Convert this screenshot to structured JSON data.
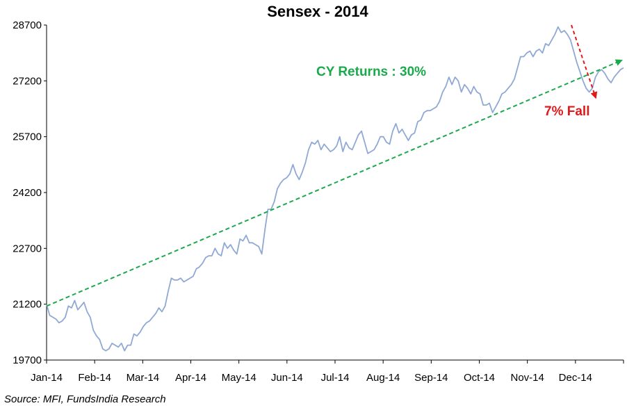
{
  "chart_data": {
    "type": "line",
    "title": "Sensex - 2014",
    "xlabel": "",
    "ylabel": "",
    "x_tick_labels": [
      "Jan-14",
      "Feb-14",
      "Mar-14",
      "Apr-14",
      "May-14",
      "Jun-14",
      "Jul-14",
      "Aug-14",
      "Sep-14",
      "Oct-14",
      "Nov-14",
      "Dec-14"
    ],
    "y_ticks": [
      19700,
      21200,
      22700,
      24200,
      25700,
      27200,
      28700
    ],
    "ylim": [
      19700,
      28700
    ],
    "series": [
      {
        "color": "#8FA9D4",
        "values": [
          21200,
          20900,
          20850,
          20800,
          20700,
          20750,
          20850,
          21150,
          21100,
          21300,
          21050,
          21150,
          21250,
          21000,
          20850,
          20500,
          20350,
          20250,
          20000,
          19950,
          20000,
          20150,
          20100,
          20050,
          20150,
          19950,
          20100,
          20100,
          20400,
          20350,
          20450,
          20600,
          20700,
          20750,
          20850,
          20950,
          21100,
          21000,
          21150,
          21550,
          21900,
          21850,
          21850,
          21900,
          21800,
          21850,
          21900,
          21950,
          22150,
          22200,
          22300,
          22450,
          22500,
          22500,
          22700,
          22550,
          22500,
          22850,
          22700,
          22800,
          22650,
          22550,
          22950,
          22900,
          23050,
          22850,
          22850,
          22800,
          22750,
          22550,
          23200,
          23750,
          23750,
          23950,
          24300,
          24450,
          24550,
          24600,
          24700,
          24950,
          24700,
          24550,
          24750,
          25000,
          25350,
          25550,
          25500,
          25600,
          25350,
          25500,
          25400,
          25300,
          25350,
          25450,
          25700,
          25300,
          25550,
          25400,
          25350,
          25550,
          25750,
          25850,
          25550,
          25250,
          25300,
          25350,
          25500,
          25700,
          25700,
          25550,
          25500,
          25850,
          26050,
          25800,
          25900,
          25750,
          25600,
          25750,
          25800,
          26100,
          26150,
          26350,
          26400,
          26400,
          26450,
          26500,
          26650,
          26900,
          27050,
          27300,
          27100,
          27300,
          27200,
          26900,
          27100,
          27000,
          26850,
          27050,
          26900,
          26850,
          26550,
          26550,
          26600,
          26350,
          26500,
          26650,
          26850,
          26900,
          27000,
          27100,
          27250,
          27550,
          27850,
          27850,
          27950,
          28000,
          27850,
          28000,
          28050,
          27950,
          28200,
          28150,
          28300,
          28450,
          28650,
          28500,
          28550,
          28450,
          28300,
          28000,
          27700,
          27450,
          27200,
          27000,
          26900,
          27000,
          27300,
          27450,
          27500,
          27400,
          27250,
          27150,
          27300,
          27400,
          27500,
          27550
        ]
      }
    ],
    "annotations": [
      {
        "text": "CY Returns : 30%",
        "color": "#1AAA4C"
      },
      {
        "text": "7% Fall",
        "color": "#E0191B"
      }
    ],
    "trend_line": {
      "from": 21150,
      "to": 27750,
      "color": "#1AAA4C",
      "style": "dashed"
    },
    "fall_arrow": {
      "from": 28700,
      "to": 26750,
      "color": "#E0191B",
      "style": "dashed"
    },
    "grid": false,
    "legend": "none"
  },
  "source": "Source: MFI, FundsIndia Research"
}
